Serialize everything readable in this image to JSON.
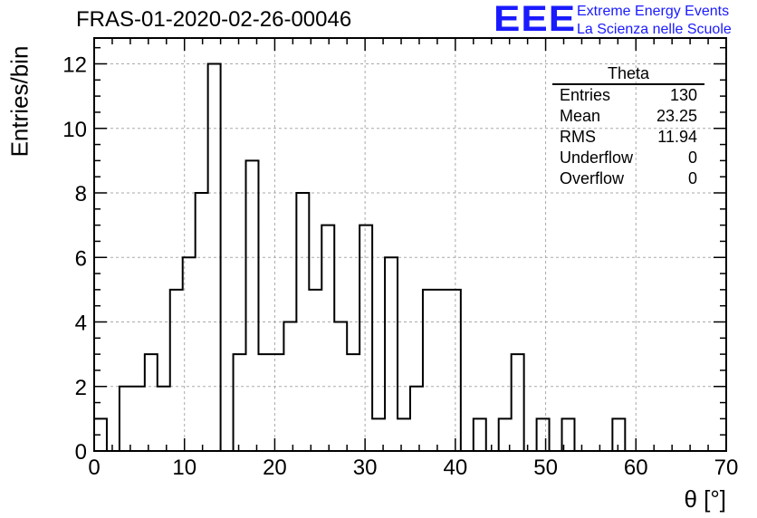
{
  "header": {
    "title": "FRAS-01-2020-02-26-00046",
    "logo_text": "EEE",
    "org_line1": "Extreme Energy Events",
    "org_line2": "La Scienza nelle Scuole"
  },
  "colors": {
    "brand": "#1a1aff",
    "line": "#000000",
    "grid": "#aaaaaa"
  },
  "stats_box": {
    "title": "Theta",
    "rows": [
      {
        "label": "Entries",
        "value": "130"
      },
      {
        "label": "Mean",
        "value": "23.25"
      },
      {
        "label": "RMS",
        "value": "11.94"
      },
      {
        "label": "Underflow",
        "value": "0"
      },
      {
        "label": "Overflow",
        "value": "0"
      }
    ]
  },
  "chart_data": {
    "type": "bar",
    "style": "step-histogram",
    "title": "FRAS-01-2020-02-26-00046",
    "xlabel": "θ [°]",
    "ylabel": "Entries/bin",
    "xlim": [
      0,
      70
    ],
    "ylim": [
      0,
      12.8
    ],
    "bin_width": 1.4,
    "x_ticks": [
      0,
      10,
      20,
      30,
      40,
      50,
      60,
      70
    ],
    "y_ticks": [
      0,
      2,
      4,
      6,
      8,
      10,
      12
    ],
    "grid": true,
    "bin_edges_start": 0,
    "values": [
      1,
      0,
      2,
      2,
      3,
      2,
      5,
      6,
      8,
      12,
      0,
      3,
      9,
      3,
      3,
      4,
      8,
      5,
      7,
      4,
      3,
      7,
      1,
      6,
      1,
      2,
      5,
      5,
      5,
      0,
      1,
      0,
      1,
      3,
      0,
      1,
      0,
      1,
      0,
      0,
      0,
      1,
      0,
      0,
      0,
      0,
      0,
      0,
      0,
      0
    ]
  }
}
